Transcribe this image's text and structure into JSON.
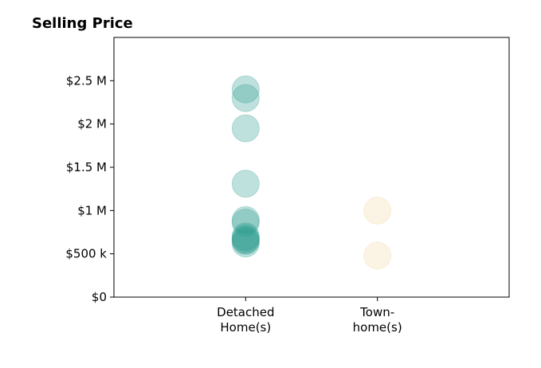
{
  "chart_data": {
    "type": "scatter",
    "title": "Selling Price",
    "xlabel": "",
    "ylabel": "",
    "ylim": [
      0,
      3000000
    ],
    "yticks": [
      {
        "value": 0,
        "label": "$0"
      },
      {
        "value": 500000,
        "label": "$500 k"
      },
      {
        "value": 1000000,
        "label": "$1 M"
      },
      {
        "value": 1500000,
        "label": "$1.5 M"
      },
      {
        "value": 2000000,
        "label": "$2 M"
      },
      {
        "value": 2500000,
        "label": "$2.5 M"
      }
    ],
    "xlim": [
      0,
      3
    ],
    "grid": false,
    "categories": [
      {
        "x": 1,
        "lines": [
          "Detached",
          "Home(s)"
        ]
      },
      {
        "x": 2,
        "lines": [
          "Town-",
          "home(s)"
        ]
      }
    ],
    "series": [
      {
        "category": "Detached Home(s)",
        "x": 1,
        "color": "#2a9d8f",
        "values": [
          2400000,
          2300000,
          1950000,
          1310000,
          890000,
          860000,
          700000,
          680000,
          660000,
          650000,
          620000
        ]
      },
      {
        "category": "Town-home(s)",
        "x": 2,
        "color": "#f1d7a3",
        "values": [
          1000000,
          480000
        ]
      }
    ]
  }
}
